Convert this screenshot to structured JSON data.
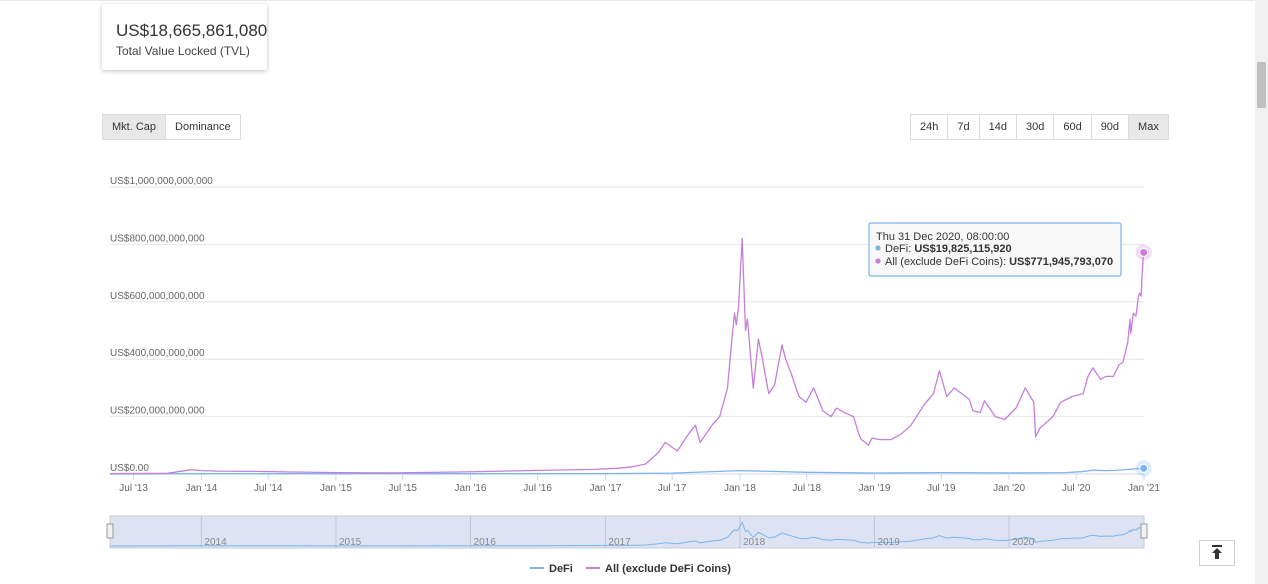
{
  "tvl": {
    "value": "US$18,665,861,080",
    "label": "Total Value Locked (TVL)"
  },
  "metric_tabs": [
    {
      "label": "Mkt. Cap",
      "active": true
    },
    {
      "label": "Dominance",
      "active": false
    }
  ],
  "range_tabs": [
    {
      "label": "24h",
      "active": false
    },
    {
      "label": "7d",
      "active": false
    },
    {
      "label": "14d",
      "active": false
    },
    {
      "label": "30d",
      "active": false
    },
    {
      "label": "60d",
      "active": false
    },
    {
      "label": "90d",
      "active": false
    },
    {
      "label": "Max",
      "active": true
    }
  ],
  "tooltip": {
    "date": "Thu 31 Dec 2020, 08:00:00",
    "rows": [
      {
        "name": "DeFi",
        "value": "US$19,825,115,920",
        "color": "#7cb5ec"
      },
      {
        "name": "All (exclude DeFi Coins)",
        "value": "US$771,945,793,070",
        "color": "#c77ddc"
      }
    ]
  },
  "navigator": {
    "labels": [
      "2014",
      "2015",
      "2016",
      "2017",
      "2018",
      "2019",
      "2020"
    ]
  },
  "to_top_icon": "arrow-up-to-line-icon",
  "chart_data": {
    "type": "line",
    "ylim": [
      0,
      1000000000000
    ],
    "y_ticks": [
      0,
      200000000000,
      400000000000,
      600000000000,
      800000000000,
      1000000000000
    ],
    "y_tick_labels": [
      "US$0.00",
      "US$200,000,000,000",
      "US$400,000,000,000",
      "US$600,000,000,000",
      "US$800,000,000,000",
      "US$1,000,000,000,000"
    ],
    "xlim": [
      "2013-04-28",
      "2021-01-01"
    ],
    "x_ticks": [
      "2013-07-01",
      "2014-01-01",
      "2014-07-01",
      "2015-01-01",
      "2015-07-01",
      "2016-01-01",
      "2016-07-01",
      "2017-01-01",
      "2017-07-01",
      "2018-01-01",
      "2018-07-01",
      "2019-01-01",
      "2019-07-01",
      "2020-01-01",
      "2020-07-01",
      "2021-01-01"
    ],
    "x_tick_labels": [
      "Jul '13",
      "Jan '14",
      "Jul '14",
      "Jan '15",
      "Jul '15",
      "Jan '16",
      "Jul '16",
      "Jan '17",
      "Jul '17",
      "Jan '18",
      "Jul '18",
      "Jan '19",
      "Jul '19",
      "Jan '20",
      "Jul '20",
      "Jan '21"
    ],
    "legend_position": "bottom-center",
    "grid": "horizontal",
    "series": [
      {
        "name": "DeFi",
        "color": "#7cb5ec",
        "x": [
          "2013-04-28",
          "2014-01-01",
          "2015-01-01",
          "2016-01-01",
          "2017-01-01",
          "2017-07-01",
          "2018-01-01",
          "2018-07-01",
          "2019-01-01",
          "2019-07-01",
          "2020-01-01",
          "2020-06-01",
          "2020-07-15",
          "2020-08-20",
          "2020-09-10",
          "2020-10-15",
          "2020-11-20",
          "2020-12-31"
        ],
        "y": [
          100000000,
          1000000000,
          1000000000,
          1000000000,
          1500000000,
          3000000000,
          12000000000,
          6000000000,
          3500000000,
          5000000000,
          4000000000,
          5000000000,
          8000000000,
          14000000000,
          12000000000,
          12500000000,
          16000000000,
          19825115920
        ]
      },
      {
        "name": "All (exclude DeFi Coins)",
        "color": "#c77ddc",
        "x": [
          "2013-04-28",
          "2013-10-01",
          "2013-12-05",
          "2014-01-01",
          "2014-02-15",
          "2014-06-01",
          "2014-09-01",
          "2015-01-15",
          "2015-06-01",
          "2015-12-01",
          "2016-06-01",
          "2016-12-01",
          "2017-02-01",
          "2017-03-15",
          "2017-04-20",
          "2017-05-25",
          "2017-06-12",
          "2017-07-15",
          "2017-08-15",
          "2017-09-02",
          "2017-09-15",
          "2017-10-20",
          "2017-11-07",
          "2017-11-28",
          "2017-12-10",
          "2017-12-17",
          "2017-12-22",
          "2017-12-28",
          "2018-01-07",
          "2018-01-16",
          "2018-01-21",
          "2018-02-06",
          "2018-02-20",
          "2018-03-03",
          "2018-03-20",
          "2018-04-05",
          "2018-04-25",
          "2018-05-05",
          "2018-05-20",
          "2018-06-10",
          "2018-06-29",
          "2018-07-20",
          "2018-08-14",
          "2018-09-05",
          "2018-09-20",
          "2018-10-10",
          "2018-11-05",
          "2018-11-19",
          "2018-11-26",
          "2018-12-07",
          "2018-12-15",
          "2018-12-25",
          "2019-01-15",
          "2019-02-15",
          "2019-03-15",
          "2019-04-10",
          "2019-05-15",
          "2019-06-10",
          "2019-06-26",
          "2019-07-16",
          "2019-08-05",
          "2019-09-15",
          "2019-09-25",
          "2019-10-15",
          "2019-10-26",
          "2019-11-25",
          "2019-12-20",
          "2020-01-20",
          "2020-02-14",
          "2020-03-08",
          "2020-03-13",
          "2020-03-25",
          "2020-04-29",
          "2020-05-20",
          "2020-06-20",
          "2020-07-20",
          "2020-08-02",
          "2020-08-15",
          "2020-09-05",
          "2020-09-20",
          "2020-10-10",
          "2020-10-25",
          "2020-11-05",
          "2020-11-18",
          "2020-11-24",
          "2020-11-26",
          "2020-12-03",
          "2020-12-10",
          "2020-12-17",
          "2020-12-20",
          "2020-12-24",
          "2020-12-27",
          "2020-12-31"
        ],
        "y": [
          1500000000,
          2500000000,
          15000000000,
          12000000000,
          10000000000,
          9000000000,
          7000000000,
          5000000000,
          4000000000,
          7000000000,
          12000000000,
          16000000000,
          20000000000,
          25000000000,
          35000000000,
          75000000000,
          110000000000,
          80000000000,
          140000000000,
          170000000000,
          110000000000,
          175000000000,
          200000000000,
          300000000000,
          470000000000,
          560000000000,
          520000000000,
          580000000000,
          820000000000,
          500000000000,
          540000000000,
          300000000000,
          470000000000,
          400000000000,
          280000000000,
          310000000000,
          450000000000,
          400000000000,
          350000000000,
          270000000000,
          250000000000,
          300000000000,
          220000000000,
          200000000000,
          230000000000,
          215000000000,
          200000000000,
          140000000000,
          120000000000,
          110000000000,
          100000000000,
          125000000000,
          120000000000,
          120000000000,
          140000000000,
          170000000000,
          240000000000,
          280000000000,
          360000000000,
          270000000000,
          300000000000,
          260000000000,
          220000000000,
          215000000000,
          255000000000,
          200000000000,
          190000000000,
          230000000000,
          300000000000,
          250000000000,
          130000000000,
          160000000000,
          200000000000,
          250000000000,
          270000000000,
          280000000000,
          340000000000,
          370000000000,
          330000000000,
          340000000000,
          340000000000,
          380000000000,
          390000000000,
          460000000000,
          540000000000,
          490000000000,
          560000000000,
          550000000000,
          620000000000,
          630000000000,
          620000000000,
          700000000000,
          771945793070
        ]
      }
    ]
  }
}
